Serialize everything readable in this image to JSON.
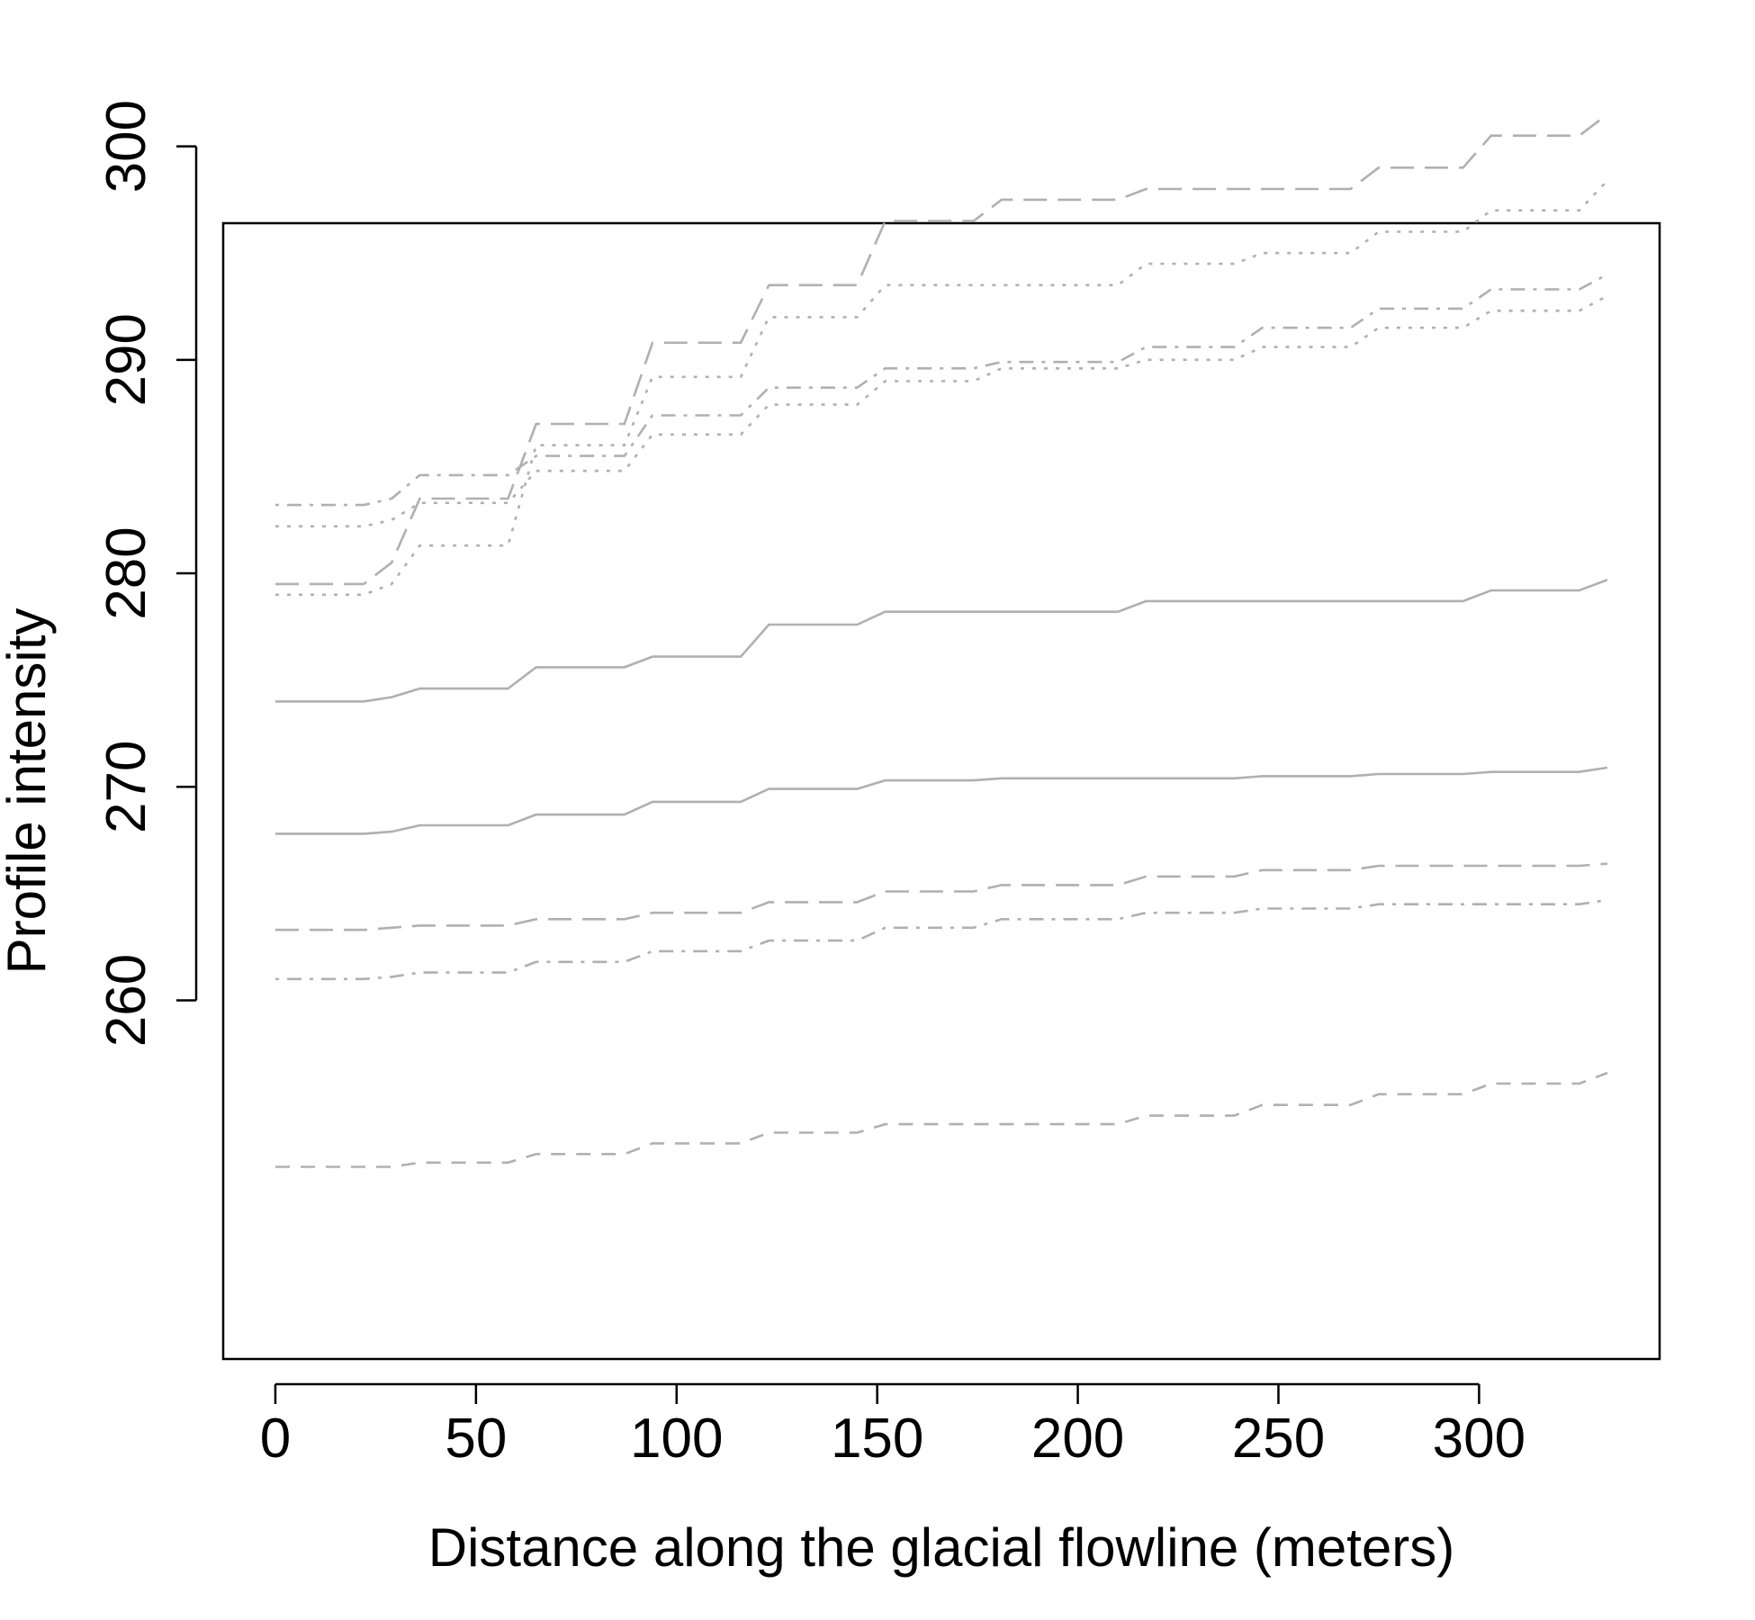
{
  "chart_data": {
    "type": "line",
    "xlabel": "Distance along the glacial flowline (meters)",
    "ylabel": "Profile intensity",
    "xlim": [
      -13,
      345
    ],
    "ylim": [
      243.2,
      296.4
    ],
    "xticks": [
      0,
      50,
      100,
      150,
      200,
      250,
      300
    ],
    "yticks": [
      260,
      270,
      280,
      290,
      300
    ],
    "grid": false,
    "legend": "none",
    "line_color": "#b0b0b0",
    "x": [
      0,
      22,
      29,
      36,
      58,
      65,
      87,
      94,
      116,
      123,
      145,
      152,
      174,
      181,
      210,
      217,
      239,
      246,
      268,
      275,
      296,
      303,
      325,
      332
    ],
    "series": [
      {
        "dash": "long-dash",
        "values": [
          279.5,
          279.5,
          280.5,
          283.5,
          283.5,
          287.0,
          287.0,
          290.8,
          290.8,
          293.5,
          293.5,
          296.5,
          296.5,
          297.5,
          297.5,
          298.0,
          298.0,
          298.0,
          298.0,
          299.0,
          299.0,
          300.5,
          300.5,
          301.5
        ]
      },
      {
        "dash": "dotted",
        "values": [
          279.0,
          279.0,
          279.5,
          281.3,
          281.3,
          286.0,
          286.0,
          289.2,
          289.2,
          292.0,
          292.0,
          293.5,
          293.5,
          293.5,
          293.5,
          294.5,
          294.5,
          295.0,
          295.0,
          296.0,
          296.0,
          297.0,
          297.0,
          298.4
        ]
      },
      {
        "dash": "dash-dot",
        "values": [
          283.2,
          283.2,
          283.5,
          284.6,
          284.6,
          285.5,
          285.5,
          287.4,
          287.4,
          288.7,
          288.7,
          289.6,
          289.6,
          289.9,
          289.9,
          290.6,
          290.6,
          291.5,
          291.5,
          292.4,
          292.4,
          293.3,
          293.3,
          294.0
        ]
      },
      {
        "dash": "dotted",
        "values": [
          282.2,
          282.2,
          282.5,
          283.3,
          283.3,
          284.8,
          284.8,
          286.5,
          286.5,
          287.9,
          287.9,
          289.0,
          289.0,
          289.6,
          289.6,
          290.0,
          290.0,
          290.6,
          290.6,
          291.5,
          291.5,
          292.3,
          292.3,
          293.0
        ]
      },
      {
        "dash": "solid",
        "values": [
          274.0,
          274.0,
          274.2,
          274.6,
          274.6,
          275.6,
          275.6,
          276.1,
          276.1,
          277.6,
          277.6,
          278.2,
          278.2,
          278.2,
          278.2,
          278.7,
          278.7,
          278.7,
          278.7,
          278.7,
          278.7,
          279.2,
          279.2,
          279.7
        ]
      },
      {
        "dash": "solid",
        "values": [
          267.8,
          267.8,
          267.9,
          268.2,
          268.2,
          268.7,
          268.7,
          269.3,
          269.3,
          269.9,
          269.9,
          270.3,
          270.3,
          270.4,
          270.4,
          270.4,
          270.4,
          270.5,
          270.5,
          270.6,
          270.6,
          270.7,
          270.7,
          270.9
        ]
      },
      {
        "dash": "long-dash",
        "values": [
          263.3,
          263.3,
          263.4,
          263.5,
          263.5,
          263.8,
          263.8,
          264.1,
          264.1,
          264.6,
          264.6,
          265.1,
          265.1,
          265.4,
          265.4,
          265.8,
          265.8,
          266.1,
          266.1,
          266.3,
          266.3,
          266.3,
          266.3,
          266.4
        ]
      },
      {
        "dash": "dash-dot",
        "values": [
          261.0,
          261.0,
          261.1,
          261.3,
          261.3,
          261.8,
          261.8,
          262.3,
          262.3,
          262.8,
          262.8,
          263.4,
          263.4,
          263.8,
          263.8,
          264.1,
          264.1,
          264.3,
          264.3,
          264.5,
          264.5,
          264.5,
          264.5,
          264.7
        ]
      },
      {
        "dash": "dashed",
        "values": [
          252.2,
          252.2,
          252.2,
          252.4,
          252.4,
          252.8,
          252.8,
          253.3,
          253.3,
          253.8,
          253.8,
          254.2,
          254.2,
          254.2,
          254.2,
          254.6,
          254.6,
          255.1,
          255.1,
          255.6,
          255.6,
          256.1,
          256.1,
          256.6
        ]
      }
    ]
  }
}
